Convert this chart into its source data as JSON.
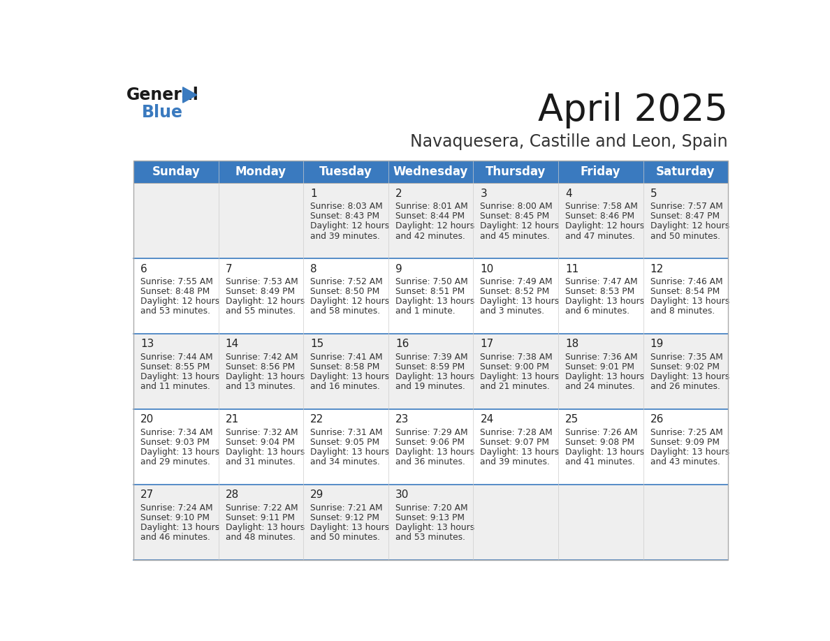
{
  "title": "April 2025",
  "subtitle": "Navaquesera, Castille and Leon, Spain",
  "header_color": "#3a7abf",
  "header_text_color": "#ffffff",
  "day_names": [
    "Sunday",
    "Monday",
    "Tuesday",
    "Wednesday",
    "Thursday",
    "Friday",
    "Saturday"
  ],
  "bg_color": "#ffffff",
  "cell_bg_even": "#efefef",
  "cell_bg_odd": "#ffffff",
  "border_color": "#3a7abf",
  "text_color": "#333333",
  "weeks": [
    [
      {
        "date": "",
        "sunrise": "",
        "sunset": "",
        "daylight": ""
      },
      {
        "date": "",
        "sunrise": "",
        "sunset": "",
        "daylight": ""
      },
      {
        "date": "1",
        "sunrise": "8:03 AM",
        "sunset": "8:43 PM",
        "daylight_h": "12 hours",
        "daylight_m": "and 39 minutes."
      },
      {
        "date": "2",
        "sunrise": "8:01 AM",
        "sunset": "8:44 PM",
        "daylight_h": "12 hours",
        "daylight_m": "and 42 minutes."
      },
      {
        "date": "3",
        "sunrise": "8:00 AM",
        "sunset": "8:45 PM",
        "daylight_h": "12 hours",
        "daylight_m": "and 45 minutes."
      },
      {
        "date": "4",
        "sunrise": "7:58 AM",
        "sunset": "8:46 PM",
        "daylight_h": "12 hours",
        "daylight_m": "and 47 minutes."
      },
      {
        "date": "5",
        "sunrise": "7:57 AM",
        "sunset": "8:47 PM",
        "daylight_h": "12 hours",
        "daylight_m": "and 50 minutes."
      }
    ],
    [
      {
        "date": "6",
        "sunrise": "7:55 AM",
        "sunset": "8:48 PM",
        "daylight_h": "12 hours",
        "daylight_m": "and 53 minutes."
      },
      {
        "date": "7",
        "sunrise": "7:53 AM",
        "sunset": "8:49 PM",
        "daylight_h": "12 hours",
        "daylight_m": "and 55 minutes."
      },
      {
        "date": "8",
        "sunrise": "7:52 AM",
        "sunset": "8:50 PM",
        "daylight_h": "12 hours",
        "daylight_m": "and 58 minutes."
      },
      {
        "date": "9",
        "sunrise": "7:50 AM",
        "sunset": "8:51 PM",
        "daylight_h": "13 hours",
        "daylight_m": "and 1 minute."
      },
      {
        "date": "10",
        "sunrise": "7:49 AM",
        "sunset": "8:52 PM",
        "daylight_h": "13 hours",
        "daylight_m": "and 3 minutes."
      },
      {
        "date": "11",
        "sunrise": "7:47 AM",
        "sunset": "8:53 PM",
        "daylight_h": "13 hours",
        "daylight_m": "and 6 minutes."
      },
      {
        "date": "12",
        "sunrise": "7:46 AM",
        "sunset": "8:54 PM",
        "daylight_h": "13 hours",
        "daylight_m": "and 8 minutes."
      }
    ],
    [
      {
        "date": "13",
        "sunrise": "7:44 AM",
        "sunset": "8:55 PM",
        "daylight_h": "13 hours",
        "daylight_m": "and 11 minutes."
      },
      {
        "date": "14",
        "sunrise": "7:42 AM",
        "sunset": "8:56 PM",
        "daylight_h": "13 hours",
        "daylight_m": "and 13 minutes."
      },
      {
        "date": "15",
        "sunrise": "7:41 AM",
        "sunset": "8:58 PM",
        "daylight_h": "13 hours",
        "daylight_m": "and 16 minutes."
      },
      {
        "date": "16",
        "sunrise": "7:39 AM",
        "sunset": "8:59 PM",
        "daylight_h": "13 hours",
        "daylight_m": "and 19 minutes."
      },
      {
        "date": "17",
        "sunrise": "7:38 AM",
        "sunset": "9:00 PM",
        "daylight_h": "13 hours",
        "daylight_m": "and 21 minutes."
      },
      {
        "date": "18",
        "sunrise": "7:36 AM",
        "sunset": "9:01 PM",
        "daylight_h": "13 hours",
        "daylight_m": "and 24 minutes."
      },
      {
        "date": "19",
        "sunrise": "7:35 AM",
        "sunset": "9:02 PM",
        "daylight_h": "13 hours",
        "daylight_m": "and 26 minutes."
      }
    ],
    [
      {
        "date": "20",
        "sunrise": "7:34 AM",
        "sunset": "9:03 PM",
        "daylight_h": "13 hours",
        "daylight_m": "and 29 minutes."
      },
      {
        "date": "21",
        "sunrise": "7:32 AM",
        "sunset": "9:04 PM",
        "daylight_h": "13 hours",
        "daylight_m": "and 31 minutes."
      },
      {
        "date": "22",
        "sunrise": "7:31 AM",
        "sunset": "9:05 PM",
        "daylight_h": "13 hours",
        "daylight_m": "and 34 minutes."
      },
      {
        "date": "23",
        "sunrise": "7:29 AM",
        "sunset": "9:06 PM",
        "daylight_h": "13 hours",
        "daylight_m": "and 36 minutes."
      },
      {
        "date": "24",
        "sunrise": "7:28 AM",
        "sunset": "9:07 PM",
        "daylight_h": "13 hours",
        "daylight_m": "and 39 minutes."
      },
      {
        "date": "25",
        "sunrise": "7:26 AM",
        "sunset": "9:08 PM",
        "daylight_h": "13 hours",
        "daylight_m": "and 41 minutes."
      },
      {
        "date": "26",
        "sunrise": "7:25 AM",
        "sunset": "9:09 PM",
        "daylight_h": "13 hours",
        "daylight_m": "and 43 minutes."
      }
    ],
    [
      {
        "date": "27",
        "sunrise": "7:24 AM",
        "sunset": "9:10 PM",
        "daylight_h": "13 hours",
        "daylight_m": "and 46 minutes."
      },
      {
        "date": "28",
        "sunrise": "7:22 AM",
        "sunset": "9:11 PM",
        "daylight_h": "13 hours",
        "daylight_m": "and 48 minutes."
      },
      {
        "date": "29",
        "sunrise": "7:21 AM",
        "sunset": "9:12 PM",
        "daylight_h": "13 hours",
        "daylight_m": "and 50 minutes."
      },
      {
        "date": "30",
        "sunrise": "7:20 AM",
        "sunset": "9:13 PM",
        "daylight_h": "13 hours",
        "daylight_m": "and 53 minutes."
      },
      {
        "date": "",
        "sunrise": "",
        "sunset": "",
        "daylight_h": "",
        "daylight_m": ""
      },
      {
        "date": "",
        "sunrise": "",
        "sunset": "",
        "daylight_h": "",
        "daylight_m": ""
      },
      {
        "date": "",
        "sunrise": "",
        "sunset": "",
        "daylight_h": "",
        "daylight_m": ""
      }
    ]
  ]
}
